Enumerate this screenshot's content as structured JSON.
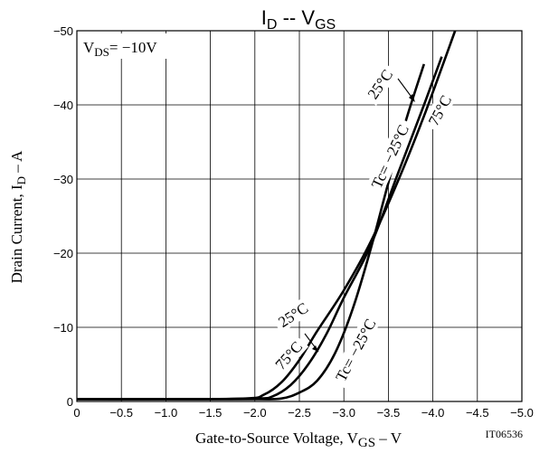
{
  "chart_data": {
    "type": "line",
    "title_main": "I",
    "title_main_sub": "D",
    "title_sep": "--",
    "title_var": "V",
    "title_var_sub": "GS",
    "xlabel": "Gate-to-Source Voltage, V",
    "xlabel_sub": "GS",
    "xlabel_unit": "–  V",
    "ylabel": "Drain Current, I",
    "ylabel_sub": "D",
    "ylabel_unit": "–  A",
    "xlim": [
      0,
      -5.0
    ],
    "ylim": [
      0,
      -50
    ],
    "xticks": [
      "0",
      "−0.5",
      "−1.0",
      "−1.5",
      "−2.0",
      "−2.5",
      "−3.0",
      "−3.5",
      "−4.0",
      "−4.5",
      "−5.0"
    ],
    "yticks": [
      "0",
      "−10",
      "−20",
      "−30",
      "−40",
      "−50"
    ],
    "grid": true,
    "condition_main": "V",
    "condition_sub": "DS",
    "condition_val": "= −10V",
    "figure_id": "IT06536",
    "series": [
      {
        "name": "Tc= −25°C",
        "x": [
          0,
          -1.0,
          -2.0,
          -2.3,
          -2.5,
          -2.7,
          -2.9,
          -3.1,
          -3.3,
          -3.5,
          -3.7,
          -3.9
        ],
        "y": [
          -0.3,
          -0.3,
          -0.3,
          -0.4,
          -1.2,
          -2.8,
          -6.5,
          -12.5,
          -20.5,
          -29.5,
          -38,
          -45.5
        ]
      },
      {
        "name": "25°C",
        "x": [
          0,
          -1.0,
          -2.0,
          -2.2,
          -2.4,
          -2.6,
          -2.8,
          -3.0,
          -3.3,
          -3.6,
          -3.9,
          -4.1
        ],
        "y": [
          -0.3,
          -0.3,
          -0.4,
          -0.7,
          -2.2,
          -5.0,
          -9.0,
          -14.0,
          -21.0,
          -30.5,
          -40.0,
          -46.5
        ]
      },
      {
        "name": "75°C",
        "x": [
          0,
          -1.0,
          -1.9,
          -2.1,
          -2.3,
          -2.5,
          -2.7,
          -3.0,
          -3.3,
          -3.6,
          -3.9,
          -4.25
        ],
        "y": [
          -0.3,
          -0.3,
          -0.4,
          -0.9,
          -2.6,
          -5.6,
          -9.5,
          -15.0,
          -21.5,
          -29.5,
          -38.5,
          -50
        ]
      }
    ],
    "annotations": {
      "lower_25": "25°C",
      "lower_75": "75°C",
      "lower_tc": "Tc= −25°C",
      "upper_25": "25°C",
      "upper_75": "75°C",
      "upper_tc": "Tc= −25°C"
    }
  }
}
